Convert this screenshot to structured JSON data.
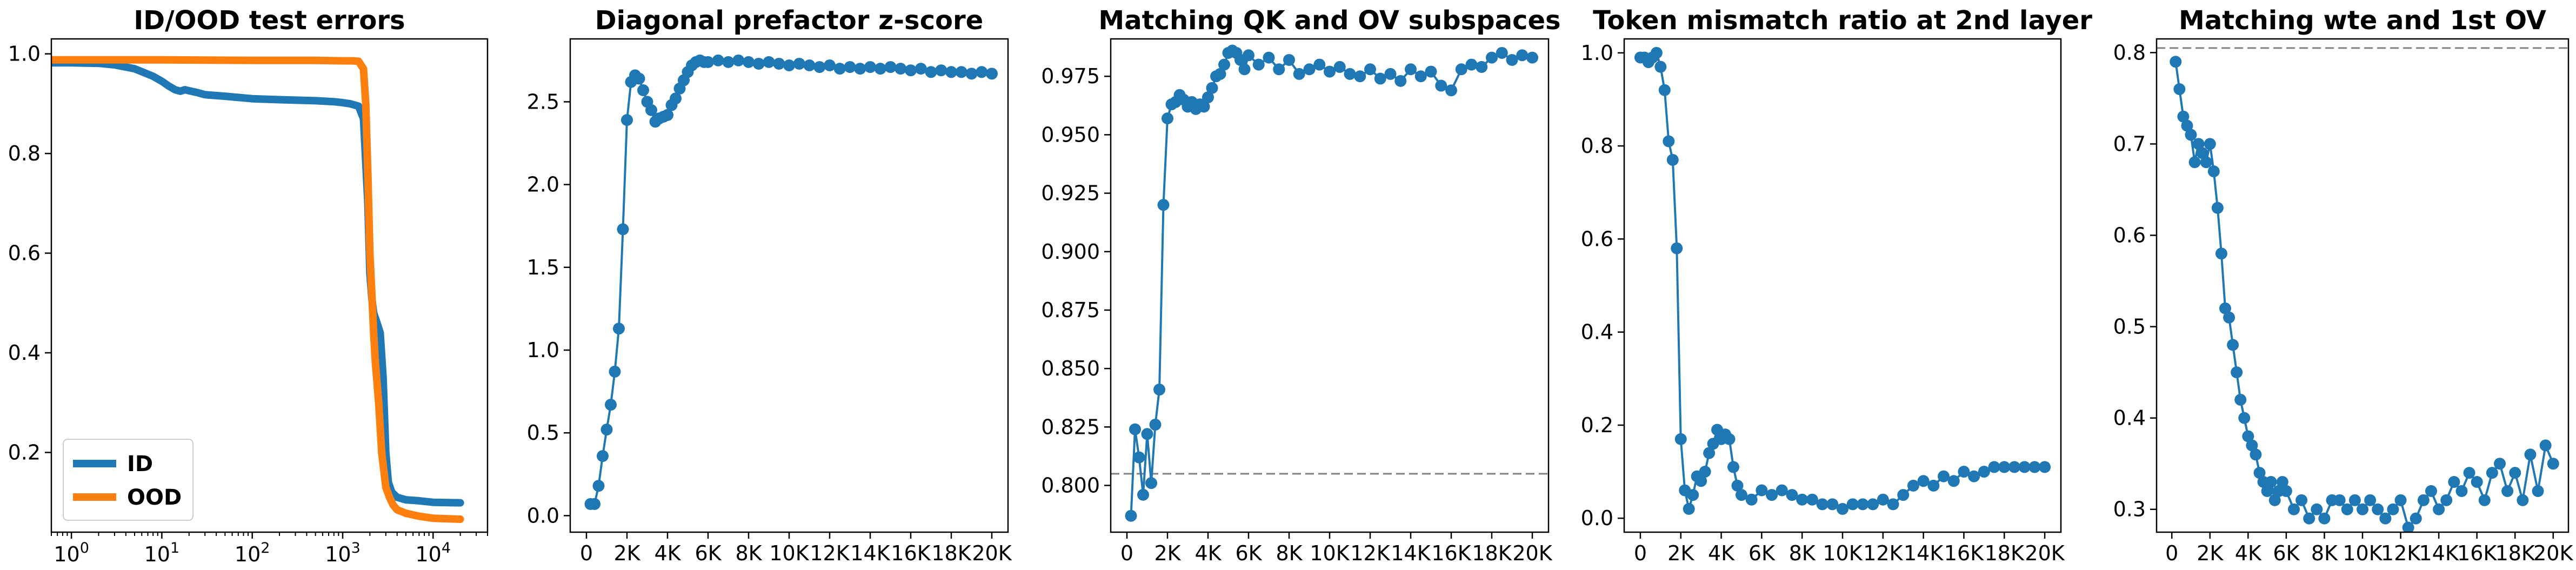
{
  "chart_data": [
    {
      "type": "line",
      "title": "ID/OOD test errors",
      "xlabel": "",
      "ylabel": "",
      "x_scale": "log",
      "xlim": [
        0.6,
        40000
      ],
      "ylim": [
        0.04,
        1.03
      ],
      "x_ticks": [
        1,
        10,
        100,
        1000,
        10000
      ],
      "x_tick_labels": [
        {
          "base": "10",
          "exp": "0"
        },
        {
          "base": "10",
          "exp": "1"
        },
        {
          "base": "10",
          "exp": "2"
        },
        {
          "base": "10",
          "exp": "3"
        },
        {
          "base": "10",
          "exp": "4"
        }
      ],
      "y_ticks": [
        0.2,
        0.4,
        0.6,
        0.8,
        1.0
      ],
      "y_tick_labels": [
        "0.2",
        "0.4",
        "0.6",
        "0.8",
        "1.0"
      ],
      "legend": {
        "placement": "lower-left",
        "entries": [
          "ID",
          "OOD"
        ]
      },
      "series": [
        {
          "name": "ID",
          "color": "#1f77b4",
          "x": [
            0.6,
            1,
            2,
            3,
            5,
            8,
            10,
            12,
            14,
            16,
            18,
            20,
            25,
            30,
            50,
            100,
            200,
            500,
            800,
            1000,
            1200,
            1500,
            1700,
            1900,
            2000,
            2100,
            2200,
            2400,
            2600,
            2800,
            3000,
            3200,
            3500,
            4000,
            5000,
            7000,
            10000,
            20000
          ],
          "y": [
            0.982,
            0.982,
            0.981,
            0.978,
            0.97,
            0.955,
            0.945,
            0.935,
            0.928,
            0.925,
            0.928,
            0.926,
            0.922,
            0.918,
            0.915,
            0.91,
            0.908,
            0.906,
            0.904,
            0.902,
            0.9,
            0.895,
            0.87,
            0.7,
            0.56,
            0.51,
            0.48,
            0.46,
            0.44,
            0.35,
            0.2,
            0.14,
            0.12,
            0.11,
            0.105,
            0.103,
            0.1,
            0.099
          ]
        },
        {
          "name": "OOD",
          "color": "#ff7f0e",
          "x": [
            0.6,
            1,
            10,
            100,
            500,
            1000,
            1300,
            1500,
            1700,
            1800,
            1900,
            2000,
            2100,
            2200,
            2300,
            2500,
            2700,
            3000,
            3300,
            3600,
            4000,
            5000,
            7000,
            10000,
            20000
          ],
          "y": [
            0.988,
            0.988,
            0.988,
            0.987,
            0.987,
            0.986,
            0.986,
            0.985,
            0.97,
            0.9,
            0.76,
            0.6,
            0.52,
            0.44,
            0.38,
            0.3,
            0.2,
            0.13,
            0.11,
            0.095,
            0.085,
            0.078,
            0.072,
            0.068,
            0.066
          ]
        }
      ]
    },
    {
      "type": "line",
      "title": "Diagonal prefactor z-score",
      "xlabel": "",
      "ylabel": "",
      "xlim": [
        -800,
        20800
      ],
      "ylim": [
        -0.1,
        2.88
      ],
      "x_ticks": [
        0,
        2000,
        4000,
        6000,
        8000,
        10000,
        12000,
        14000,
        16000,
        18000,
        20000
      ],
      "x_tick_labels": [
        "0",
        "2K",
        "4K",
        "6K",
        "8K",
        "10K",
        "12K",
        "14K",
        "16K",
        "18K",
        "20K"
      ],
      "y_ticks": [
        0.0,
        0.5,
        1.0,
        1.5,
        2.0,
        2.5
      ],
      "y_tick_labels": [
        "0.0",
        "0.5",
        "1.0",
        "1.5",
        "2.0",
        "2.5"
      ],
      "series": [
        {
          "color": "#1f77b4",
          "markers": true,
          "x": [
            200,
            400,
            600,
            800,
            1000,
            1200,
            1400,
            1600,
            1800,
            2000,
            2200,
            2400,
            2600,
            2800,
            3000,
            3200,
            3400,
            3600,
            3800,
            4000,
            4200,
            4400,
            4600,
            4800,
            5000,
            5200,
            5400,
            5600,
            5800,
            6000,
            6500,
            7000,
            7500,
            8000,
            8500,
            9000,
            9500,
            10000,
            10500,
            11000,
            11500,
            12000,
            12500,
            13000,
            13500,
            14000,
            14500,
            15000,
            15500,
            16000,
            16500,
            17000,
            17500,
            18000,
            18500,
            19000,
            19500,
            20000
          ],
          "y": [
            0.07,
            0.07,
            0.18,
            0.36,
            0.52,
            0.67,
            0.87,
            1.13,
            1.73,
            2.39,
            2.62,
            2.66,
            2.64,
            2.57,
            2.5,
            2.45,
            2.38,
            2.4,
            2.41,
            2.42,
            2.48,
            2.52,
            2.58,
            2.63,
            2.68,
            2.72,
            2.74,
            2.75,
            2.74,
            2.74,
            2.75,
            2.74,
            2.75,
            2.74,
            2.73,
            2.74,
            2.73,
            2.72,
            2.73,
            2.72,
            2.71,
            2.72,
            2.7,
            2.71,
            2.7,
            2.71,
            2.7,
            2.71,
            2.7,
            2.69,
            2.7,
            2.68,
            2.69,
            2.68,
            2.68,
            2.67,
            2.68,
            2.67
          ]
        }
      ]
    },
    {
      "type": "line",
      "title": "Matching QK and OV subspaces",
      "xlabel": "",
      "ylabel": "",
      "xlim": [
        -800,
        20800
      ],
      "ylim": [
        0.78,
        0.991
      ],
      "x_ticks": [
        0,
        2000,
        4000,
        6000,
        8000,
        10000,
        12000,
        14000,
        16000,
        18000,
        20000
      ],
      "x_tick_labels": [
        "0",
        "2K",
        "4K",
        "6K",
        "8K",
        "10K",
        "12K",
        "14K",
        "16K",
        "18K",
        "20K"
      ],
      "y_ticks": [
        0.8,
        0.825,
        0.85,
        0.875,
        0.9,
        0.925,
        0.95,
        0.975
      ],
      "y_tick_labels": [
        "0.800",
        "0.825",
        "0.850",
        "0.875",
        "0.900",
        "0.925",
        "0.950",
        "0.975"
      ],
      "reference_line": {
        "y": 0.805,
        "style": "dashed",
        "color": "#808080"
      },
      "series": [
        {
          "color": "#1f77b4",
          "markers": true,
          "x": [
            200,
            400,
            600,
            800,
            1000,
            1200,
            1400,
            1600,
            1800,
            2000,
            2200,
            2400,
            2600,
            2800,
            3000,
            3200,
            3400,
            3600,
            3800,
            4000,
            4200,
            4400,
            4600,
            4800,
            5000,
            5200,
            5400,
            5600,
            5800,
            6000,
            6500,
            7000,
            7500,
            8000,
            8500,
            9000,
            9500,
            10000,
            10500,
            11000,
            11500,
            12000,
            12500,
            13000,
            13500,
            14000,
            14500,
            15000,
            15500,
            16000,
            16500,
            17000,
            17500,
            18000,
            18500,
            19000,
            19500,
            20000
          ],
          "y": [
            0.787,
            0.824,
            0.812,
            0.796,
            0.822,
            0.801,
            0.826,
            0.841,
            0.92,
            0.957,
            0.963,
            0.964,
            0.967,
            0.965,
            0.962,
            0.964,
            0.961,
            0.963,
            0.962,
            0.966,
            0.97,
            0.975,
            0.976,
            0.98,
            0.985,
            0.986,
            0.985,
            0.982,
            0.978,
            0.984,
            0.98,
            0.983,
            0.978,
            0.982,
            0.976,
            0.978,
            0.98,
            0.977,
            0.979,
            0.976,
            0.975,
            0.978,
            0.974,
            0.976,
            0.973,
            0.978,
            0.975,
            0.977,
            0.971,
            0.969,
            0.978,
            0.98,
            0.979,
            0.983,
            0.985,
            0.982,
            0.984,
            0.983
          ]
        }
      ]
    },
    {
      "type": "line",
      "title": "Token mismatch ratio at 2nd layer",
      "xlabel": "",
      "ylabel": "",
      "xlim": [
        -800,
        20800
      ],
      "ylim": [
        -0.03,
        1.03
      ],
      "x_ticks": [
        0,
        2000,
        4000,
        6000,
        8000,
        10000,
        12000,
        14000,
        16000,
        18000,
        20000
      ],
      "x_tick_labels": [
        "0",
        "2K",
        "4K",
        "6K",
        "8K",
        "10K",
        "12K",
        "14K",
        "16K",
        "18K",
        "20K"
      ],
      "y_ticks": [
        0.0,
        0.2,
        0.4,
        0.6,
        0.8,
        1.0
      ],
      "y_tick_labels": [
        "0.0",
        "0.2",
        "0.4",
        "0.6",
        "0.8",
        "1.0"
      ],
      "series": [
        {
          "color": "#1f77b4",
          "markers": true,
          "x": [
            0,
            200,
            400,
            600,
            800,
            1000,
            1200,
            1400,
            1600,
            1800,
            2000,
            2200,
            2400,
            2600,
            2800,
            3000,
            3200,
            3400,
            3600,
            3800,
            4000,
            4200,
            4400,
            4600,
            4800,
            5000,
            5500,
            6000,
            6500,
            7000,
            7500,
            8000,
            8500,
            9000,
            9500,
            10000,
            10500,
            11000,
            11500,
            12000,
            12500,
            13000,
            13500,
            14000,
            14500,
            15000,
            15500,
            16000,
            16500,
            17000,
            17500,
            18000,
            18500,
            19000,
            19500,
            20000
          ],
          "y": [
            0.99,
            0.99,
            0.98,
            0.99,
            1.0,
            0.97,
            0.92,
            0.81,
            0.77,
            0.58,
            0.17,
            0.06,
            0.02,
            0.05,
            0.09,
            0.08,
            0.1,
            0.14,
            0.16,
            0.19,
            0.17,
            0.18,
            0.17,
            0.11,
            0.07,
            0.05,
            0.04,
            0.06,
            0.05,
            0.06,
            0.05,
            0.04,
            0.04,
            0.03,
            0.03,
            0.02,
            0.03,
            0.03,
            0.03,
            0.04,
            0.03,
            0.05,
            0.07,
            0.08,
            0.07,
            0.09,
            0.08,
            0.1,
            0.09,
            0.1,
            0.11,
            0.11,
            0.11,
            0.11,
            0.11,
            0.11
          ]
        }
      ]
    },
    {
      "type": "line",
      "title": "Matching wte and 1st OV",
      "xlabel": "",
      "ylabel": "",
      "xlim": [
        -800,
        20800
      ],
      "ylim": [
        0.275,
        0.815
      ],
      "x_ticks": [
        0,
        2000,
        4000,
        6000,
        8000,
        10000,
        12000,
        14000,
        16000,
        18000,
        20000
      ],
      "x_tick_labels": [
        "0",
        "2K",
        "4K",
        "6K",
        "8K",
        "10K",
        "12K",
        "14K",
        "16K",
        "18K",
        "20K"
      ],
      "y_ticks": [
        0.3,
        0.4,
        0.5,
        0.6,
        0.7,
        0.8
      ],
      "y_tick_labels": [
        "0.3",
        "0.4",
        "0.5",
        "0.6",
        "0.7",
        "0.8"
      ],
      "reference_line": {
        "y": 0.805,
        "style": "dashed",
        "color": "#808080"
      },
      "series": [
        {
          "color": "#1f77b4",
          "markers": true,
          "x": [
            200,
            400,
            600,
            800,
            1000,
            1200,
            1400,
            1600,
            1800,
            2000,
            2200,
            2400,
            2600,
            2800,
            3000,
            3200,
            3400,
            3600,
            3800,
            4000,
            4200,
            4400,
            4600,
            4800,
            5000,
            5200,
            5400,
            5600,
            5800,
            6000,
            6400,
            6800,
            7200,
            7600,
            8000,
            8400,
            8800,
            9200,
            9600,
            10000,
            10400,
            10800,
            11200,
            11600,
            12000,
            12400,
            12800,
            13200,
            13600,
            14000,
            14400,
            14800,
            15200,
            15600,
            16000,
            16400,
            16800,
            17200,
            17600,
            18000,
            18400,
            18800,
            19200,
            19600,
            20000
          ],
          "y": [
            0.79,
            0.76,
            0.73,
            0.72,
            0.71,
            0.68,
            0.7,
            0.69,
            0.68,
            0.7,
            0.67,
            0.63,
            0.58,
            0.52,
            0.51,
            0.48,
            0.45,
            0.42,
            0.4,
            0.38,
            0.37,
            0.36,
            0.34,
            0.33,
            0.32,
            0.33,
            0.31,
            0.32,
            0.33,
            0.32,
            0.3,
            0.31,
            0.29,
            0.3,
            0.29,
            0.31,
            0.31,
            0.3,
            0.31,
            0.3,
            0.31,
            0.3,
            0.29,
            0.3,
            0.31,
            0.28,
            0.29,
            0.31,
            0.32,
            0.3,
            0.31,
            0.33,
            0.32,
            0.34,
            0.33,
            0.31,
            0.34,
            0.35,
            0.32,
            0.34,
            0.31,
            0.36,
            0.32,
            0.37,
            0.35
          ]
        }
      ]
    }
  ]
}
